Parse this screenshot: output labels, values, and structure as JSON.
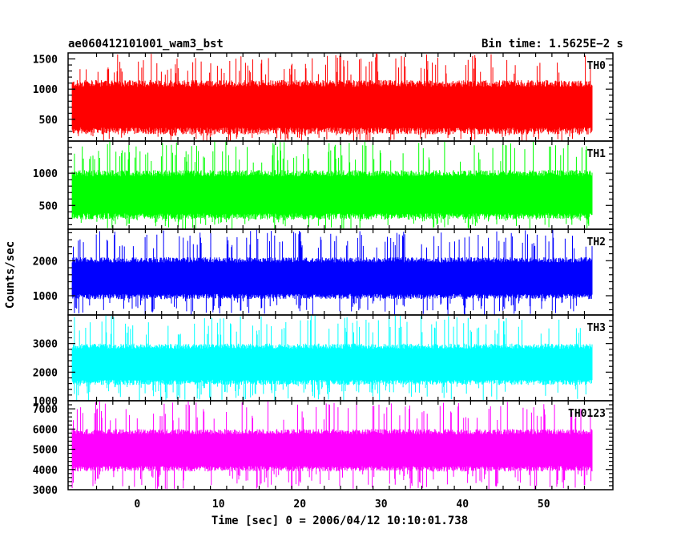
{
  "header": {
    "left_title": "ae060412101001_wam3_bst",
    "right_title": "Bin time: 1.5625E−2 s"
  },
  "chart_data": {
    "type": "line",
    "title": "ae060412101001_wam3_bst",
    "subtitle": "Bin time: 1.5625E−2 s",
    "xlabel": "Time [sec] 0 = 2006/04/12 10:10:01.738",
    "ylabel": "Counts/sec",
    "xlim": [
      -8.5,
      58.5
    ],
    "data_x_range": [
      -8,
      56
    ],
    "x_ticks": [
      0,
      10,
      20,
      30,
      40,
      50
    ],
    "x_tick_labels": [
      "0",
      "10",
      "20",
      "30",
      "40",
      "50"
    ],
    "grid": false,
    "panels": [
      {
        "name": "TH0",
        "color": "#ff0000",
        "ylim": [
          140,
          1600
        ],
        "y_ticks": [
          500,
          1000,
          1500
        ],
        "y_tick_labels": [
          "500",
          "1000",
          "1500"
        ],
        "typical_low": 250,
        "typical_high": 1150,
        "peak_low": 130,
        "peak_high": 1600
      },
      {
        "name": "TH1",
        "color": "#00ff00",
        "ylim": [
          130,
          1500
        ],
        "y_ticks": [
          500,
          1000
        ],
        "y_tick_labels": [
          "500",
          "1000"
        ],
        "typical_low": 280,
        "typical_high": 1050,
        "peak_low": 130,
        "peak_high": 1500
      },
      {
        "name": "TH2",
        "color": "#0000ff",
        "ylim": [
          450,
          2900
        ],
        "y_ticks": [
          1000,
          2000
        ],
        "y_tick_labels": [
          "1000",
          "2000"
        ],
        "typical_low": 900,
        "typical_high": 2100,
        "peak_low": 450,
        "peak_high": 2900
      },
      {
        "name": "TH3",
        "color": "#00ffff",
        "ylim": [
          1000,
          4000
        ],
        "y_ticks": [
          1000,
          2000,
          3000
        ],
        "y_tick_labels": [
          "1000",
          "2000",
          "3000"
        ],
        "typical_low": 1550,
        "typical_high": 3000,
        "peak_low": 1000,
        "peak_high": 4000
      },
      {
        "name": "TH0123",
        "color": "#ff00ff",
        "ylim": [
          3000,
          7400
        ],
        "y_ticks": [
          3000,
          4000,
          5000,
          6000,
          7000
        ],
        "y_tick_labels": [
          "3000",
          "4000",
          "5000",
          "6000",
          "7000"
        ],
        "typical_low": 3900,
        "typical_high": 6000,
        "peak_low": 3000,
        "peak_high": 7400
      }
    ]
  }
}
